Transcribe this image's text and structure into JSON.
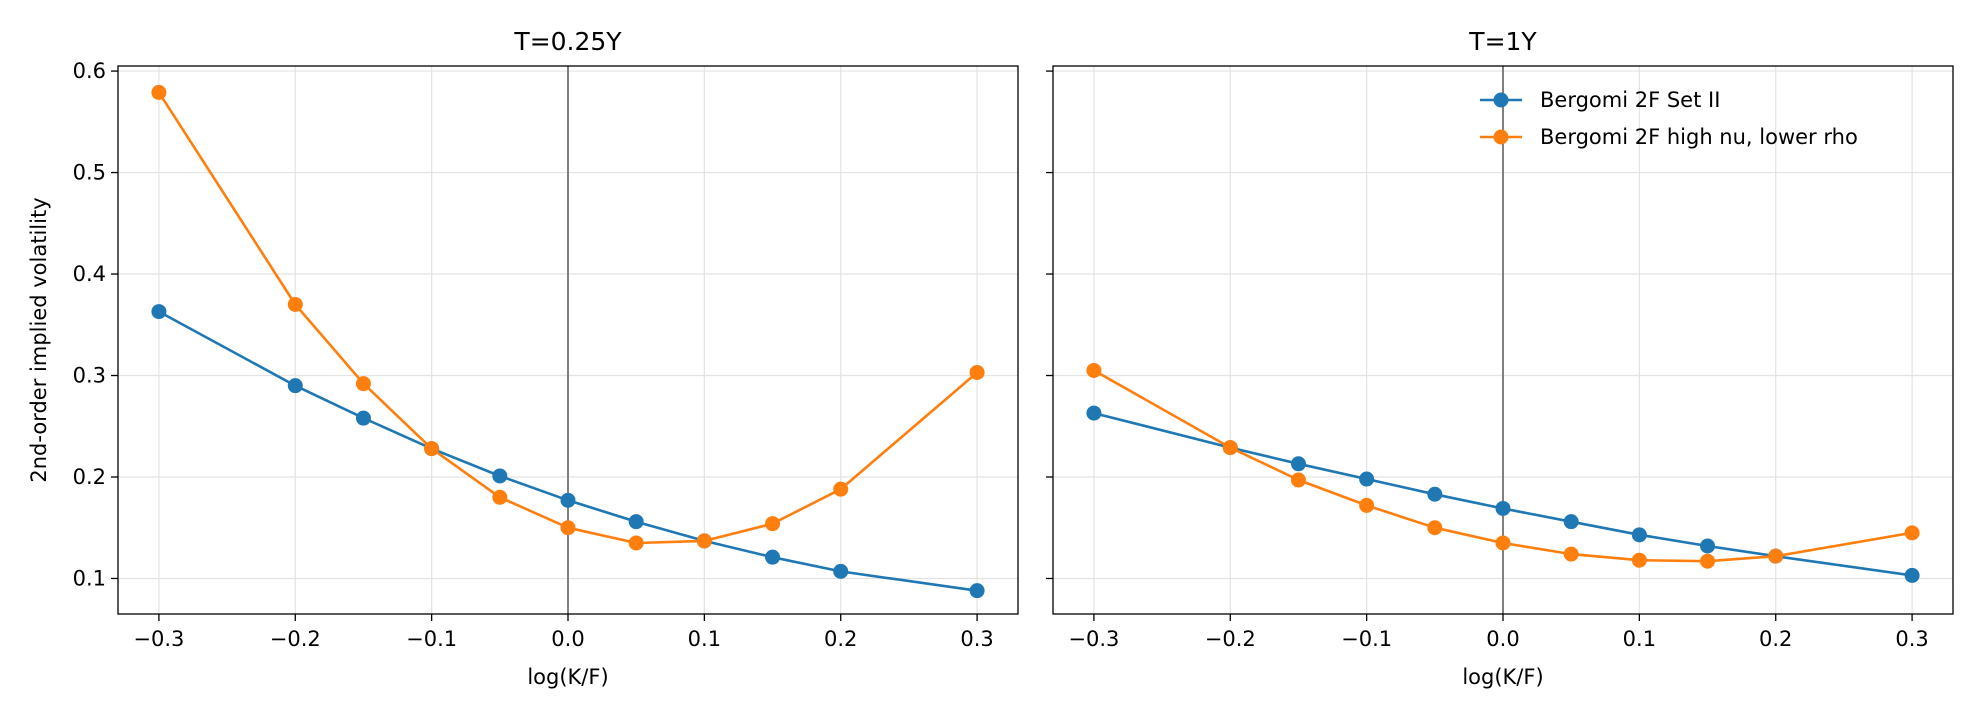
{
  "chart_data": [
    {
      "type": "line",
      "title": "T=0.25Y",
      "xlabel": "log(K/F)",
      "ylabel": "2nd-order implied volatility",
      "xlim": [
        -0.33,
        0.33
      ],
      "ylim": [
        0.065,
        0.605
      ],
      "xticks": [
        "−0.3",
        "−0.2",
        "−0.1",
        "0.0",
        "0.1",
        "0.2",
        "0.3"
      ],
      "yticks": [
        "0.1",
        "0.2",
        "0.3",
        "0.4",
        "0.5",
        "0.6"
      ],
      "vline_x": 0.0,
      "grid": true,
      "x": [
        -0.3,
        -0.2,
        -0.15,
        -0.1,
        -0.05,
        0.0,
        0.05,
        0.1,
        0.15,
        0.2,
        0.3
      ],
      "series": [
        {
          "name": "Bergomi 2F Set II",
          "color": "#1f77b4",
          "values": [
            0.363,
            0.29,
            0.258,
            0.228,
            0.201,
            0.177,
            0.156,
            0.137,
            0.121,
            0.107,
            0.088
          ]
        },
        {
          "name": "Bergomi 2F high nu, lower rho",
          "color": "#ff7f0e",
          "values": [
            0.579,
            0.37,
            0.292,
            0.228,
            0.18,
            0.15,
            0.135,
            0.137,
            0.154,
            0.188,
            0.303
          ]
        }
      ]
    },
    {
      "type": "line",
      "title": "T=1Y",
      "xlabel": "log(K/F)",
      "ylabel": "",
      "xlim": [
        -0.33,
        0.33
      ],
      "ylim": [
        0.065,
        0.605
      ],
      "xticks": [
        "−0.3",
        "−0.2",
        "−0.1",
        "0.0",
        "0.1",
        "0.2",
        "0.3"
      ],
      "yticks": [
        "0.1",
        "0.2",
        "0.3",
        "0.4",
        "0.5",
        "0.6"
      ],
      "vline_x": 0.0,
      "grid": true,
      "legend_position": "top-right",
      "x": [
        -0.3,
        -0.2,
        -0.15,
        -0.1,
        -0.05,
        0.0,
        0.05,
        0.1,
        0.15,
        0.2,
        0.3
      ],
      "series": [
        {
          "name": "Bergomi 2F Set II",
          "color": "#1f77b4",
          "values": [
            0.263,
            0.229,
            0.213,
            0.198,
            0.183,
            0.169,
            0.156,
            0.143,
            0.132,
            0.122,
            0.103
          ]
        },
        {
          "name": "Bergomi 2F high nu, lower rho",
          "color": "#ff7f0e",
          "values": [
            0.305,
            0.229,
            0.197,
            0.172,
            0.15,
            0.135,
            0.124,
            0.118,
            0.117,
            0.122,
            0.145
          ]
        }
      ]
    }
  ]
}
